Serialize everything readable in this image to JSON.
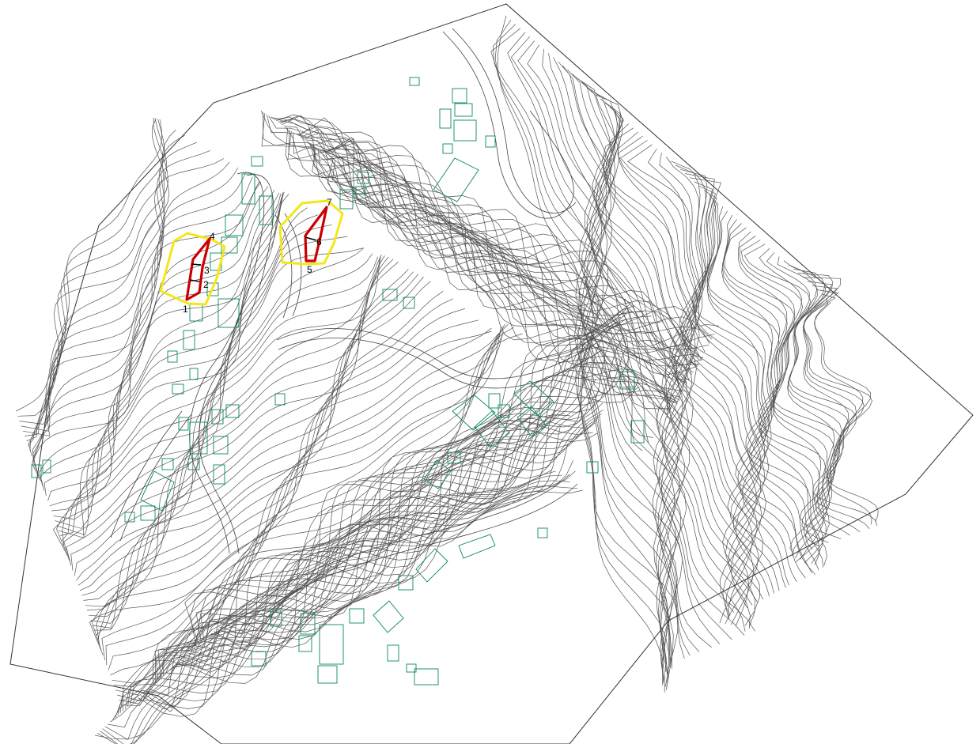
{
  "map": {
    "style": {
      "contour_color": "#555555",
      "building_color": "#0a8a5a",
      "zone_color": "#f5e61a",
      "parcel_color": "#cc0000"
    },
    "point_labels": [
      "1",
      "2",
      "3",
      "4",
      "5",
      "6",
      "7"
    ]
  }
}
